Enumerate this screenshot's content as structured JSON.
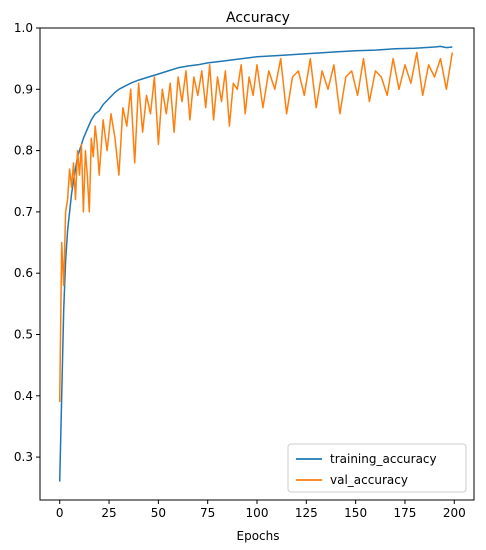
{
  "chart_data": {
    "type": "line",
    "title": "Accuracy",
    "xlabel": "Epochs",
    "ylabel": "",
    "xlim": [
      -10,
      210
    ],
    "ylim": [
      0.23,
      1.0
    ],
    "xticks": [
      0,
      25,
      50,
      75,
      100,
      125,
      150,
      175,
      200
    ],
    "yticks": [
      0.3,
      0.4,
      0.5,
      0.6,
      0.7,
      0.8,
      0.9,
      1.0
    ],
    "grid": false,
    "legend": "lower-right",
    "series": [
      {
        "name": "training_accuracy",
        "color": "#1f77b4",
        "x": [
          0,
          1,
          2,
          3,
          4,
          5,
          6,
          7,
          8,
          9,
          10,
          12,
          14,
          16,
          18,
          20,
          22,
          25,
          28,
          30,
          33,
          36,
          40,
          45,
          50,
          55,
          60,
          65,
          70,
          75,
          80,
          85,
          90,
          95,
          100,
          110,
          120,
          130,
          140,
          150,
          160,
          170,
          180,
          190,
          193,
          196,
          199
        ],
        "values": [
          0.26,
          0.4,
          0.54,
          0.62,
          0.67,
          0.7,
          0.73,
          0.75,
          0.77,
          0.79,
          0.8,
          0.82,
          0.835,
          0.85,
          0.86,
          0.865,
          0.875,
          0.885,
          0.895,
          0.9,
          0.905,
          0.91,
          0.915,
          0.92,
          0.925,
          0.93,
          0.935,
          0.938,
          0.94,
          0.943,
          0.945,
          0.947,
          0.949,
          0.951,
          0.953,
          0.955,
          0.957,
          0.959,
          0.961,
          0.963,
          0.964,
          0.966,
          0.967,
          0.969,
          0.97,
          0.968,
          0.969
        ]
      },
      {
        "name": "val_accuracy",
        "color": "#ff7f0e",
        "x": [
          0,
          1,
          2,
          3,
          4,
          5,
          6,
          7,
          8,
          9,
          10,
          11,
          12,
          13,
          14,
          15,
          16,
          17,
          18,
          19,
          20,
          22,
          24,
          26,
          28,
          30,
          32,
          34,
          36,
          38,
          40,
          42,
          44,
          46,
          48,
          50,
          52,
          54,
          56,
          58,
          60,
          62,
          64,
          66,
          68,
          70,
          72,
          74,
          76,
          78,
          80,
          82,
          84,
          86,
          88,
          90,
          92,
          94,
          96,
          98,
          100,
          103,
          106,
          109,
          112,
          115,
          118,
          121,
          124,
          127,
          130,
          133,
          136,
          139,
          142,
          145,
          148,
          151,
          154,
          157,
          160,
          163,
          166,
          169,
          172,
          175,
          178,
          181,
          184,
          187,
          190,
          193,
          196,
          199
        ],
        "values": [
          0.39,
          0.65,
          0.58,
          0.7,
          0.72,
          0.77,
          0.74,
          0.78,
          0.72,
          0.8,
          0.76,
          0.81,
          0.7,
          0.8,
          0.76,
          0.7,
          0.82,
          0.79,
          0.84,
          0.81,
          0.76,
          0.85,
          0.8,
          0.86,
          0.82,
          0.76,
          0.87,
          0.84,
          0.9,
          0.78,
          0.91,
          0.83,
          0.89,
          0.86,
          0.92,
          0.81,
          0.9,
          0.86,
          0.91,
          0.83,
          0.92,
          0.88,
          0.93,
          0.85,
          0.92,
          0.89,
          0.93,
          0.87,
          0.94,
          0.85,
          0.92,
          0.88,
          0.93,
          0.84,
          0.91,
          0.9,
          0.94,
          0.86,
          0.92,
          0.89,
          0.94,
          0.87,
          0.93,
          0.9,
          0.95,
          0.86,
          0.92,
          0.93,
          0.89,
          0.95,
          0.87,
          0.93,
          0.9,
          0.94,
          0.86,
          0.92,
          0.93,
          0.89,
          0.95,
          0.88,
          0.93,
          0.92,
          0.89,
          0.95,
          0.9,
          0.94,
          0.91,
          0.96,
          0.89,
          0.94,
          0.92,
          0.95,
          0.9,
          0.96
        ]
      }
    ]
  }
}
